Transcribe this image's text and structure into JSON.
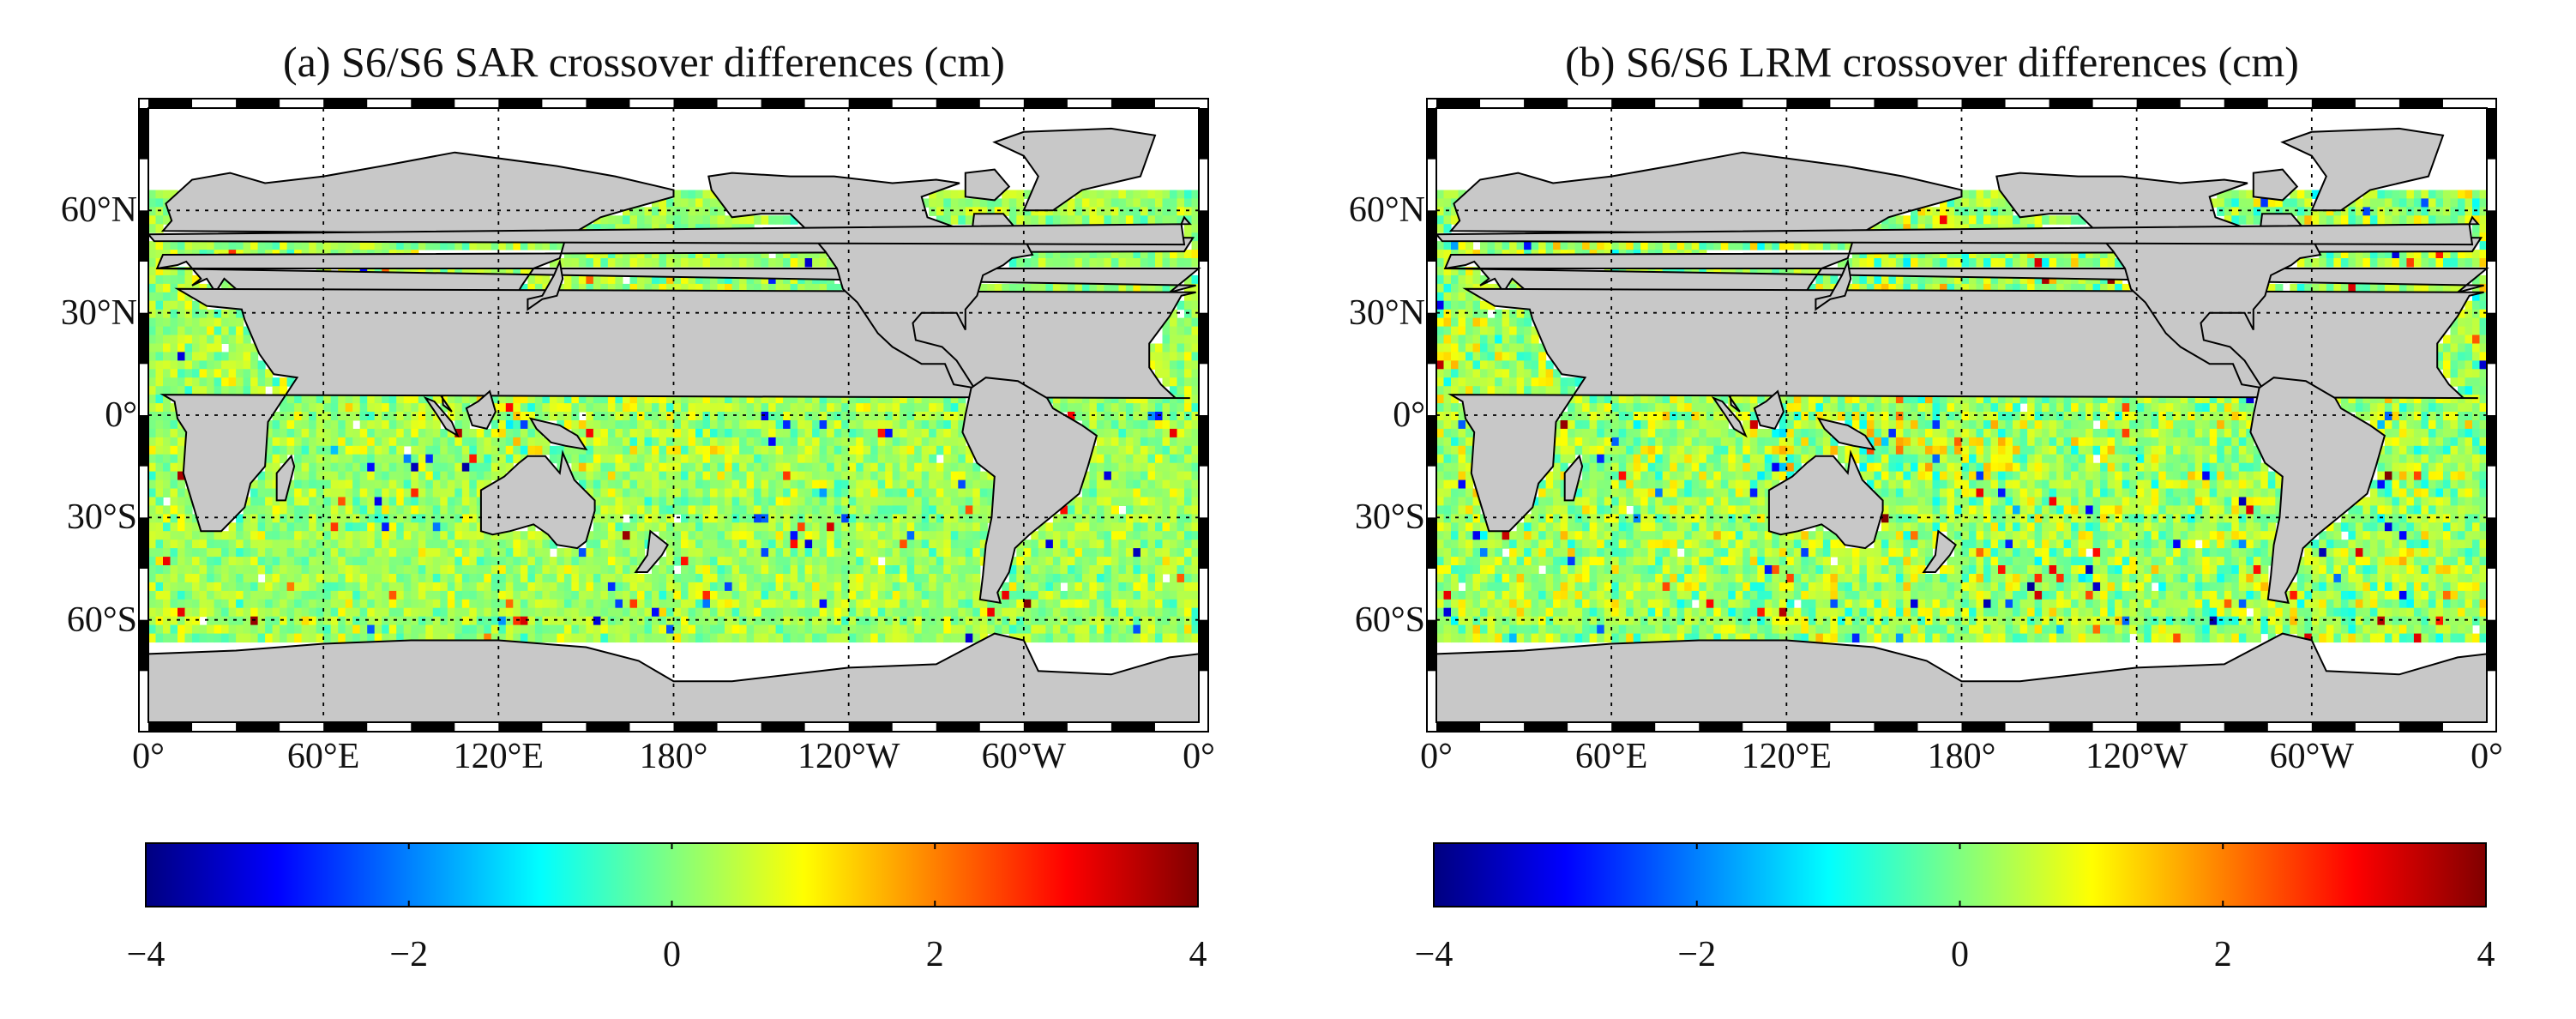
{
  "chart_data": [
    {
      "type": "heatmap",
      "title": "(a) S6/S6 SAR crossover differences (cm)",
      "map_projection": "equirectangular",
      "lon_ticks": [
        "0°",
        "60°E",
        "120°E",
        "180°",
        "120°W",
        "60°W",
        "0°"
      ],
      "lon_tick_values": [
        0,
        60,
        120,
        180,
        240,
        300,
        360
      ],
      "lat_ticks": [
        "60°N",
        "30°N",
        "0°",
        "30°S",
        "60°S"
      ],
      "lat_tick_values": [
        60,
        30,
        0,
        -30,
        -60
      ],
      "lon_range": [
        0,
        360
      ],
      "lat_range": [
        -90,
        90
      ],
      "data_lat_range": [
        -66,
        66
      ],
      "grid": true,
      "colorbar": {
        "min": -4,
        "max": 4,
        "ticks": [
          "−4",
          "−2",
          "0",
          "2",
          "4"
        ],
        "tick_values": [
          -4,
          -2,
          0,
          2,
          4
        ],
        "colormap": "jet"
      },
      "summary": "Crossover differences mostly between −1 and +1 cm (cyan–yellow), with scattered red/blue cells near the western Pacific, Indonesia and the Southern Ocean."
    },
    {
      "type": "heatmap",
      "title": "(b) S6/S6 LRM crossover differences (cm)",
      "map_projection": "equirectangular",
      "lon_ticks": [
        "0°",
        "60°E",
        "120°E",
        "180°",
        "120°W",
        "60°W",
        "0°"
      ],
      "lon_tick_values": [
        0,
        60,
        120,
        180,
        240,
        300,
        360
      ],
      "lat_ticks": [
        "60°N",
        "30°N",
        "0°",
        "30°S",
        "60°S"
      ],
      "lat_tick_values": [
        60,
        30,
        0,
        -30,
        -60
      ],
      "lon_range": [
        0,
        360
      ],
      "lat_range": [
        -90,
        90
      ],
      "data_lat_range": [
        -66,
        66
      ],
      "grid": true,
      "colorbar": {
        "min": -4,
        "max": 4,
        "ticks": [
          "−4",
          "−2",
          "0",
          "2",
          "4"
        ],
        "tick_values": [
          -4,
          -2,
          0,
          2,
          4
        ],
        "colormap": "jet"
      },
      "summary": "Noisier than SAR; more frequent red and dark-blue cells across the western Pacific and Indian Ocean."
    }
  ],
  "colors": {
    "land": "#c8c8c8",
    "coast": "#000000",
    "nodata": "#ffffff",
    "grid": "#000000"
  }
}
